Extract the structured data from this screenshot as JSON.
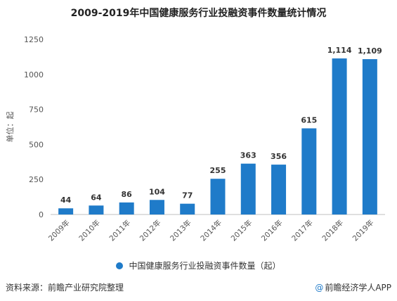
{
  "chart_data": {
    "type": "bar",
    "title": "2009-2019年中国健康服务行业投融资事件数量统计情况",
    "ylabel": "单位：起",
    "categories": [
      "2009年",
      "2010年",
      "2011年",
      "2012年",
      "2013年",
      "2014年",
      "2015年",
      "2016年",
      "2017年",
      "2018年",
      "2019年"
    ],
    "series": [
      {
        "name": "中国健康服务行业投融资事件数量（起）",
        "values": [
          44,
          64,
          86,
          104,
          77,
          255,
          363,
          356,
          615,
          1114,
          1109
        ],
        "labels": [
          "44",
          "64",
          "86",
          "104",
          "77",
          "255",
          "363",
          "356",
          "615",
          "1,114",
          "1,109"
        ]
      }
    ],
    "ylim": [
      0,
      1250
    ],
    "yticks": [
      0,
      250,
      500,
      750,
      1000,
      1250
    ],
    "grid": false,
    "legend_position": "bottom",
    "bar_color": "#1f7bc9"
  },
  "footer": {
    "source": "资料来源：前瞻产业研究院整理",
    "brand": "前瞻经济学人APP",
    "brand_icon": "at-icon"
  }
}
